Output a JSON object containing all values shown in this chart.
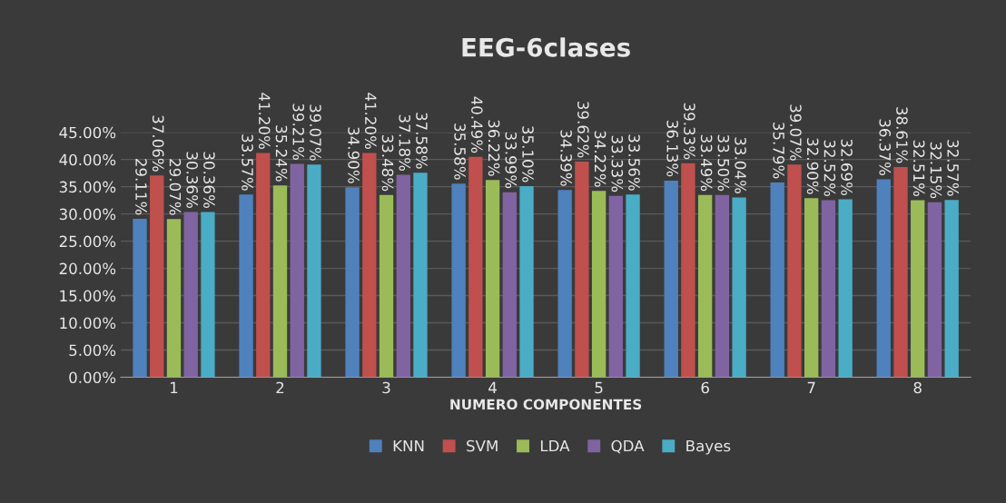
{
  "chart_data": {
    "type": "bar",
    "title": "EEG-6clases",
    "xlabel": "NUMERO COMPONENTES",
    "categories": [
      "1",
      "2",
      "3",
      "4",
      "5",
      "6",
      "7",
      "8"
    ],
    "series": [
      {
        "name": "KNN",
        "color": "#4f81bd",
        "values": [
          29.11,
          33.57,
          34.9,
          35.58,
          34.39,
          36.13,
          35.79,
          36.37
        ],
        "value_labels": [
          "29.11%",
          "33.57%",
          "34.90%",
          "35.58%",
          "34.39%",
          "36.13%",
          "35.79%",
          "36.37%"
        ]
      },
      {
        "name": "SVM",
        "color": "#c0504d",
        "values": [
          37.06,
          41.2,
          41.2,
          40.49,
          39.62,
          39.33,
          39.07,
          38.61
        ],
        "value_labels": [
          "37.06%",
          "41.20%",
          "41.20%",
          "40.49%",
          "39.62%",
          "39.33%",
          "39.07%",
          "38.61%"
        ]
      },
      {
        "name": "LDA",
        "color": "#9bbb59",
        "values": [
          29.07,
          35.24,
          33.48,
          36.22,
          34.22,
          33.49,
          32.9,
          32.51
        ],
        "value_labels": [
          "29.07%",
          "35.24%",
          "33.48%",
          "36.22%",
          "34.22%",
          "33.49%",
          "32.90%",
          "32.51%"
        ]
      },
      {
        "name": "QDA",
        "color": "#8064a2",
        "values": [
          30.36,
          39.21,
          37.18,
          33.99,
          33.33,
          33.5,
          32.52,
          32.15
        ],
        "value_labels": [
          "30.36%",
          "39.21%",
          "37.18%",
          "33.99%",
          "33.33%",
          "33.50%",
          "32.52%",
          "32.15%"
        ]
      },
      {
        "name": "Bayes",
        "color": "#4bacc6",
        "values": [
          30.36,
          39.07,
          37.58,
          35.1,
          33.56,
          33.04,
          32.69,
          32.57
        ],
        "value_labels": [
          "30.36%",
          "39.07%",
          "37.58%",
          "35.10%",
          "33.56%",
          "33.04%",
          "32.69%",
          "32.57%"
        ]
      }
    ],
    "ylim": [
      0,
      45
    ],
    "yticks": [
      {
        "value": 0,
        "label": "0.00%"
      },
      {
        "value": 5,
        "label": "5.00%"
      },
      {
        "value": 10,
        "label": "10.00%"
      },
      {
        "value": 15,
        "label": "15.00%"
      },
      {
        "value": 20,
        "label": "20.00%"
      },
      {
        "value": 25,
        "label": "25.00%"
      },
      {
        "value": 30,
        "label": "30.00%"
      },
      {
        "value": 35,
        "label": "35.00%"
      },
      {
        "value": 40,
        "label": "40.00%"
      },
      {
        "value": 45,
        "label": "45.00%"
      }
    ],
    "grid": "y",
    "legend": "bottom"
  }
}
